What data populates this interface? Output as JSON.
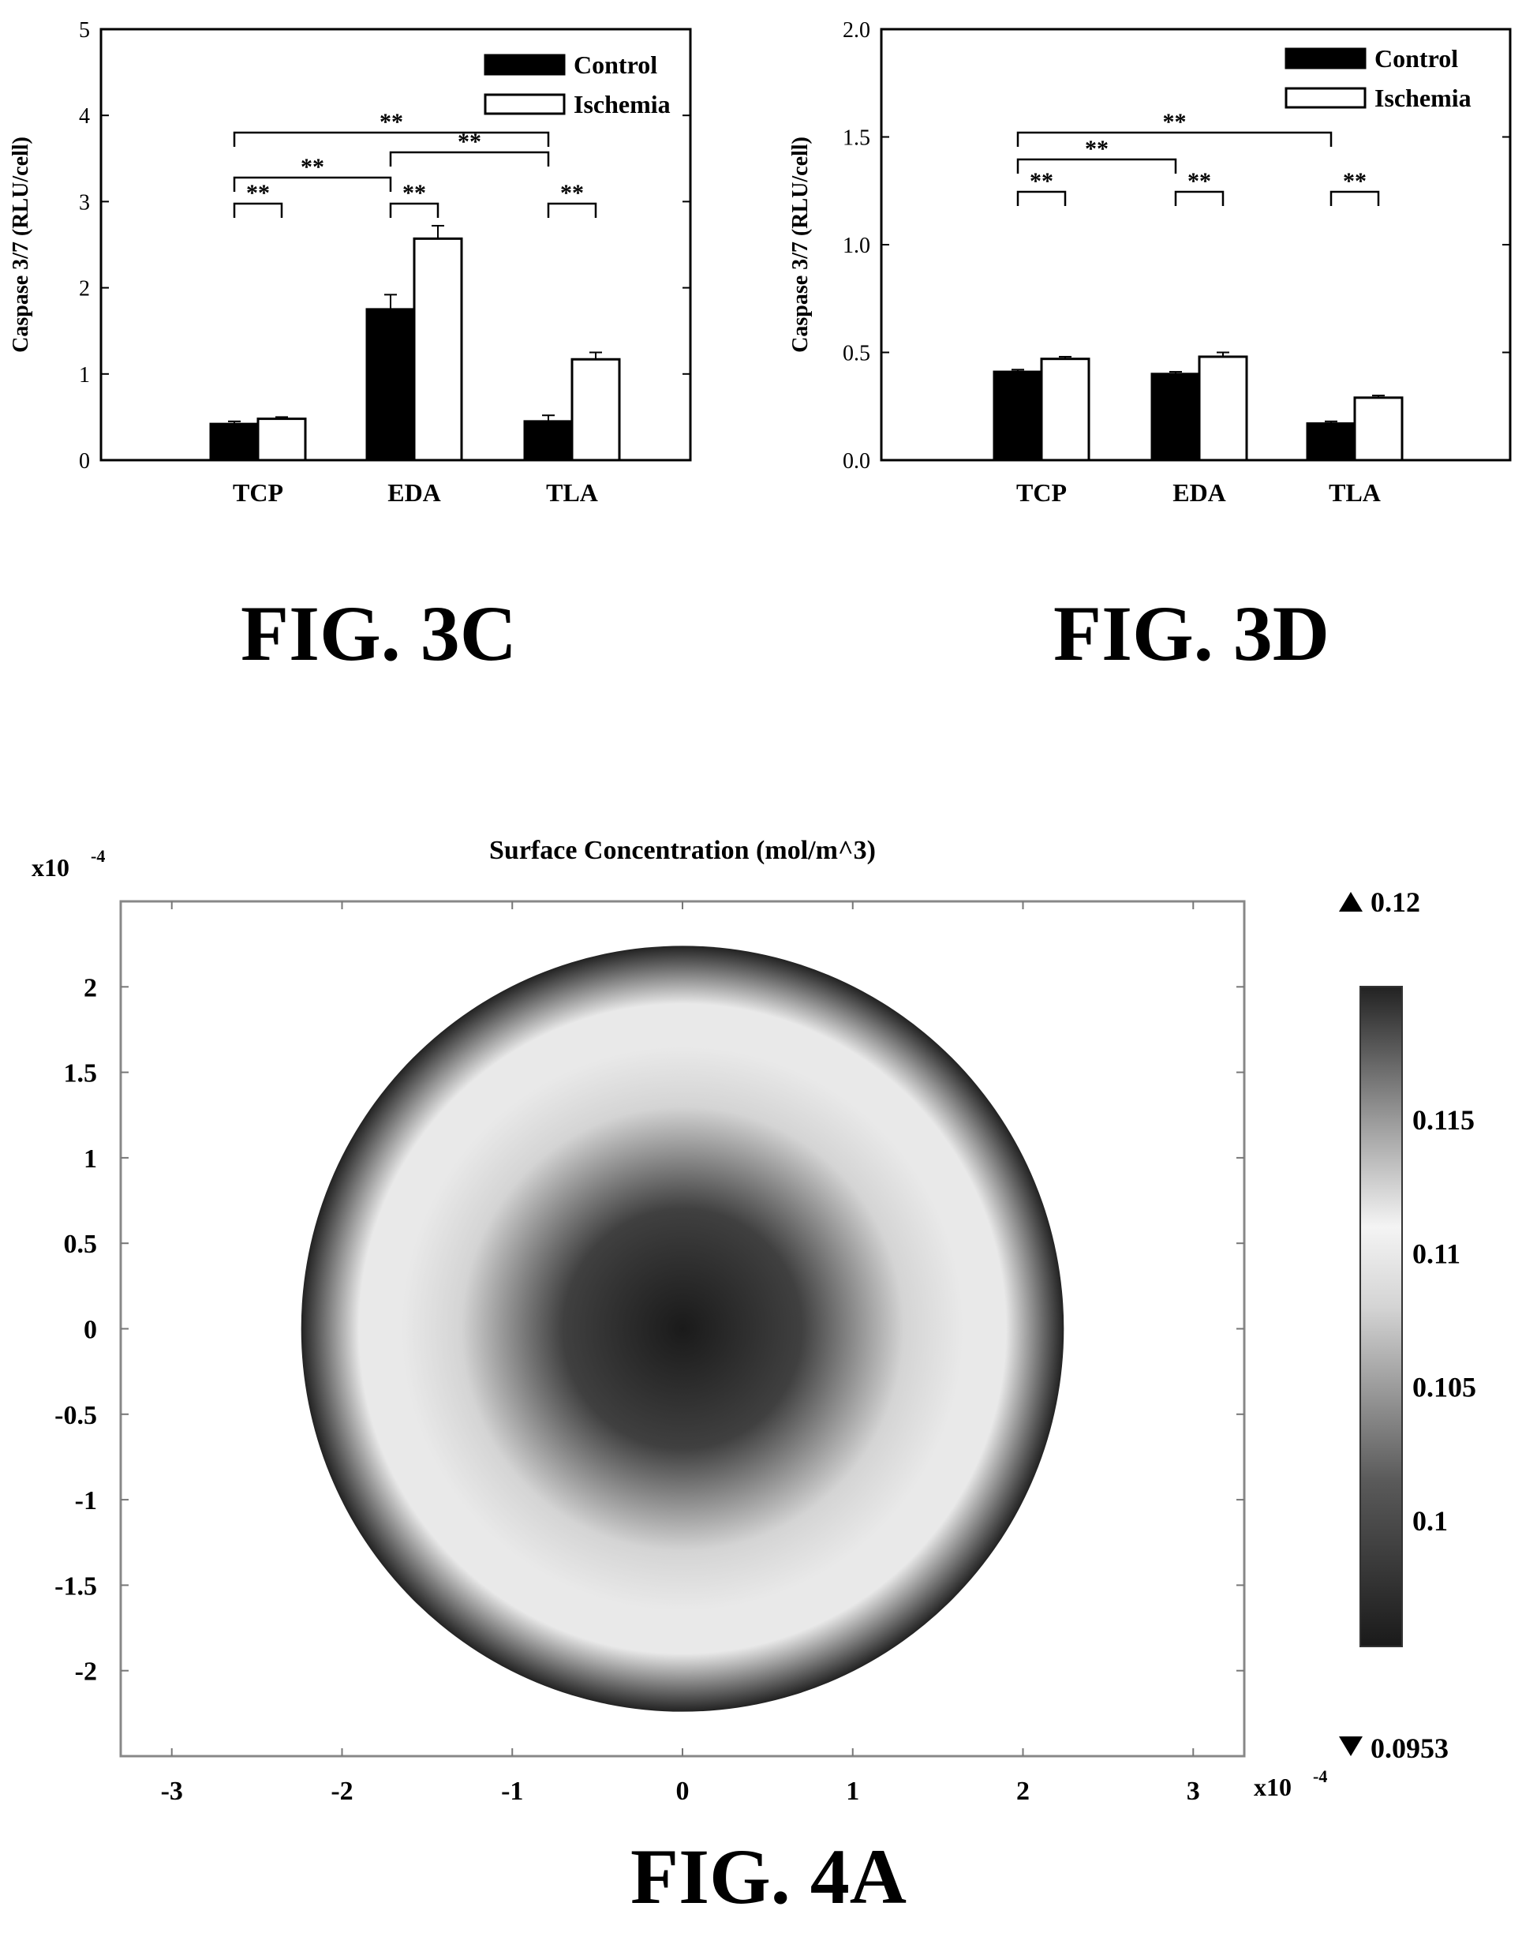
{
  "figures": [
    {
      "id": "3C",
      "caption": "FIG. 3C"
    },
    {
      "id": "3D",
      "caption": "FIG. 3D"
    },
    {
      "id": "4A",
      "caption": "FIG. 4A"
    }
  ],
  "chart_data": [
    {
      "id": "3C",
      "type": "bar",
      "ylabel": "Caspase 3/7 (RLU/cell)",
      "xlabel": "",
      "categories": [
        "TCP",
        "EDA",
        "TLA"
      ],
      "ylim": [
        0,
        5
      ],
      "yticks": [
        "0",
        "1",
        "2",
        "3",
        "4",
        "5"
      ],
      "legend_position": "top-right",
      "series": [
        {
          "name": "Control",
          "color": "#000000",
          "values": [
            0.42,
            1.75,
            0.45
          ],
          "errors": [
            0.03,
            0.17,
            0.07
          ]
        },
        {
          "name": "Ischemia",
          "color": "#ffffff",
          "values": [
            0.48,
            2.57,
            1.17
          ],
          "errors": [
            0.02,
            0.15,
            0.08
          ]
        }
      ],
      "significance_label": "**",
      "significance": [
        {
          "from_cat": 0,
          "from_series": 0,
          "to_cat": 0,
          "to_series": 1
        },
        {
          "from_cat": 1,
          "from_series": 0,
          "to_cat": 1,
          "to_series": 1
        },
        {
          "from_cat": 2,
          "from_series": 0,
          "to_cat": 2,
          "to_series": 1
        },
        {
          "from_cat": 0,
          "from_series": 0,
          "to_cat": 1,
          "to_series": 0
        },
        {
          "from_cat": 1,
          "from_series": 0,
          "to_cat": 2,
          "to_series": 0
        },
        {
          "from_cat": 0,
          "from_series": 0,
          "to_cat": 2,
          "to_series": 0
        }
      ]
    },
    {
      "id": "3D",
      "type": "bar",
      "ylabel": "Caspase 3/7 (RLU/cell)",
      "xlabel": "",
      "categories": [
        "TCP",
        "EDA",
        "TLA"
      ],
      "ylim": [
        0,
        2.0
      ],
      "yticks": [
        "0.0",
        "0.5",
        "1.0",
        "1.5",
        "2.0"
      ],
      "legend_position": "top-right",
      "series": [
        {
          "name": "Control",
          "color": "#000000",
          "values": [
            0.41,
            0.4,
            0.17
          ],
          "errors": [
            0.01,
            0.01,
            0.01
          ]
        },
        {
          "name": "Ischemia",
          "color": "#ffffff",
          "values": [
            0.47,
            0.48,
            0.29
          ],
          "errors": [
            0.01,
            0.02,
            0.01
          ]
        }
      ],
      "significance_label": "**",
      "significance": [
        {
          "from_cat": 0,
          "from_series": 0,
          "to_cat": 0,
          "to_series": 1
        },
        {
          "from_cat": 1,
          "from_series": 0,
          "to_cat": 1,
          "to_series": 1
        },
        {
          "from_cat": 2,
          "from_series": 0,
          "to_cat": 2,
          "to_series": 1
        },
        {
          "from_cat": 0,
          "from_series": 0,
          "to_cat": 1,
          "to_series": 0
        },
        {
          "from_cat": 0,
          "from_series": 0,
          "to_cat": 2,
          "to_series": 0
        }
      ]
    },
    {
      "id": "4A",
      "type": "heatmap",
      "title": "Surface Concentration (mol/m^3)",
      "x_exponent_label": "x10",
      "x_exponent": "-4",
      "y_exponent_label": "x10",
      "y_exponent": "-4",
      "xlim": [
        -3.3,
        3.3
      ],
      "ylim": [
        -2.5,
        2.5
      ],
      "xticks": [
        "-3",
        "-2",
        "-1",
        "0",
        "1",
        "2",
        "3"
      ],
      "yticks": [
        "2",
        "1.5",
        "1",
        "0.5",
        "0",
        "-0.5",
        "-1",
        "-1.5",
        "-2"
      ],
      "disk_radius": 2.24,
      "colormap": "grayscale",
      "radial_profile": [
        {
          "r": 0.0,
          "value": 0.0953
        },
        {
          "r": 0.7,
          "value": 0.099
        },
        {
          "r": 1.3,
          "value": 0.108
        },
        {
          "r": 1.65,
          "value": 0.1115
        },
        {
          "r": 1.9,
          "value": 0.11
        },
        {
          "r": 2.24,
          "value": 0.12
        }
      ],
      "colorbar": {
        "max_label": "0.12",
        "min_label": "0.0953",
        "tick_labels": [
          "0.115",
          "0.11",
          "0.105",
          "0.1"
        ],
        "tick_values": [
          0.115,
          0.11,
          0.105,
          0.1
        ],
        "min": 0.0953,
        "max": 0.12,
        "gradient": [
          {
            "value": 0.0953,
            "color": "#1a1a1a"
          },
          {
            "value": 0.1015,
            "color": "#5a5a5a"
          },
          {
            "value": 0.108,
            "color": "#d4d4d4"
          },
          {
            "value": 0.111,
            "color": "#f4f4f4"
          },
          {
            "value": 0.115,
            "color": "#9a9a9a"
          },
          {
            "value": 0.12,
            "color": "#222222"
          }
        ]
      }
    }
  ]
}
